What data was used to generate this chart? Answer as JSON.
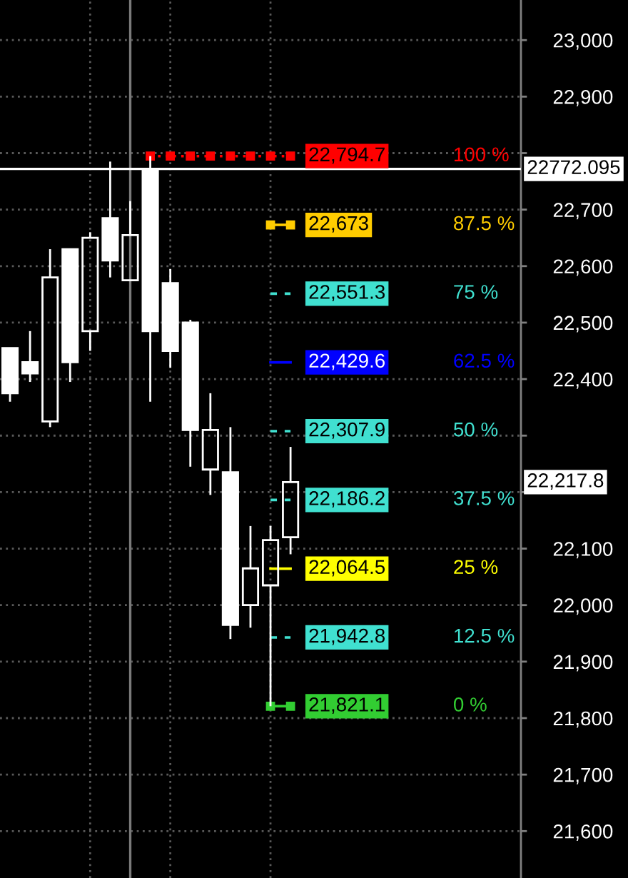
{
  "chart_data": {
    "type": "candlestick",
    "categories": [
      null,
      null,
      null,
      null,
      null,
      null,
      null,
      null,
      null,
      null,
      null,
      null,
      null,
      null,
      null,
      null,
      null,
      null,
      null,
      null,
      null,
      null,
      null,
      null,
      null,
      null
    ],
    "ohlc": [
      [
        22455,
        22455,
        22360,
        22375
      ],
      [
        22430,
        22485,
        22395,
        22410
      ],
      [
        22325,
        22630,
        22315,
        22580
      ],
      [
        22630,
        22630,
        22395,
        22430
      ],
      [
        22485,
        22660,
        22450,
        22650
      ],
      [
        22685,
        22785,
        22580,
        22610
      ],
      [
        22575,
        22715,
        22575,
        22655
      ],
      [
        22770,
        22794.7,
        22360,
        22485
      ],
      [
        22570,
        22595,
        22420,
        22450
      ],
      [
        22500,
        22505,
        22245,
        22310
      ],
      [
        22240,
        22375,
        22195,
        22310
      ],
      [
        22235,
        22315,
        21940,
        21965
      ],
      [
        22000,
        22140,
        21960,
        22065
      ],
      [
        22035,
        22140,
        21821.1,
        22115
      ],
      [
        22120,
        22280,
        22090,
        22217.8
      ],
      null,
      null,
      null,
      null,
      null,
      null,
      null,
      null,
      null,
      null,
      null
    ],
    "series": [
      {
        "name": "100 %",
        "type": "line",
        "color": "#ff0000",
        "line_style": "dotted",
        "marker": "square",
        "values": [
          null,
          null,
          null,
          null,
          null,
          null,
          null,
          22794.7,
          22794.7,
          22794.7,
          22794.7,
          22794.7,
          22794.7,
          22794.7,
          22794.7,
          null,
          null,
          null,
          null,
          null,
          null,
          null,
          null,
          null,
          null,
          null
        ],
        "value_labels": [
          null,
          null,
          null,
          null,
          null,
          null,
          null,
          null,
          null,
          null,
          null,
          null,
          null,
          null,
          "22,794.7",
          null,
          null,
          null,
          null,
          null,
          null,
          null,
          null,
          null,
          null,
          null
        ]
      },
      {
        "name": "87.5 %",
        "type": "line",
        "color": "#ffcc00",
        "line_style": "solid",
        "marker": "square",
        "values": [
          null,
          null,
          null,
          null,
          null,
          null,
          null,
          null,
          null,
          null,
          null,
          null,
          null,
          22673,
          22673,
          null,
          null,
          null,
          null,
          null,
          null,
          null,
          null,
          null,
          null,
          null
        ],
        "value_labels": [
          null,
          null,
          null,
          null,
          null,
          null,
          null,
          null,
          null,
          null,
          null,
          null,
          null,
          null,
          "22,673",
          null,
          null,
          null,
          null,
          null,
          null,
          null,
          null,
          null,
          null,
          null
        ]
      },
      {
        "name": "75 %",
        "type": "line",
        "color": "#40e0d0",
        "line_style": "dashed",
        "values": [
          null,
          null,
          null,
          null,
          null,
          null,
          null,
          null,
          null,
          null,
          null,
          null,
          null,
          22551.3,
          22551.3,
          null,
          null,
          null,
          null,
          null,
          null,
          null,
          null,
          null,
          null,
          null
        ],
        "value_labels": [
          null,
          null,
          null,
          null,
          null,
          null,
          null,
          null,
          null,
          null,
          null,
          null,
          null,
          null,
          "22,551.3",
          null,
          null,
          null,
          null,
          null,
          null,
          null,
          null,
          null,
          null,
          null
        ]
      },
      {
        "name": "62.5 %",
        "type": "line",
        "color": "#0000ff",
        "line_style": "solid",
        "values": [
          null,
          null,
          null,
          null,
          null,
          null,
          null,
          null,
          null,
          null,
          null,
          null,
          null,
          22429.6,
          22429.6,
          null,
          null,
          null,
          null,
          null,
          null,
          null,
          null,
          null,
          null,
          null
        ],
        "value_labels": [
          null,
          null,
          null,
          null,
          null,
          null,
          null,
          null,
          null,
          null,
          null,
          null,
          null,
          null,
          "22,429.6",
          null,
          null,
          null,
          null,
          null,
          null,
          null,
          null,
          null,
          null,
          null
        ]
      },
      {
        "name": "50 %",
        "type": "line",
        "color": "#40e0d0",
        "line_style": "dashed",
        "values": [
          null,
          null,
          null,
          null,
          null,
          null,
          null,
          null,
          null,
          null,
          null,
          null,
          null,
          22307.9,
          22307.9,
          null,
          null,
          null,
          null,
          null,
          null,
          null,
          null,
          null,
          null,
          null
        ],
        "value_labels": [
          null,
          null,
          null,
          null,
          null,
          null,
          null,
          null,
          null,
          null,
          null,
          null,
          null,
          null,
          "22,307.9",
          null,
          null,
          null,
          null,
          null,
          null,
          null,
          null,
          null,
          null,
          null
        ]
      },
      {
        "name": "37.5 %",
        "type": "line",
        "color": "#40e0d0",
        "line_style": "dashed",
        "values": [
          null,
          null,
          null,
          null,
          null,
          null,
          null,
          null,
          null,
          null,
          null,
          null,
          null,
          22186.2,
          22186.2,
          null,
          null,
          null,
          null,
          null,
          null,
          null,
          null,
          null,
          null,
          null
        ],
        "value_labels": [
          null,
          null,
          null,
          null,
          null,
          null,
          null,
          null,
          null,
          null,
          null,
          null,
          null,
          null,
          "22,186.2",
          null,
          null,
          null,
          null,
          null,
          null,
          null,
          null,
          null,
          null,
          null
        ]
      },
      {
        "name": "25 %",
        "type": "line",
        "color": "#ffff00",
        "line_style": "solid",
        "values": [
          null,
          null,
          null,
          null,
          null,
          null,
          null,
          null,
          null,
          null,
          null,
          null,
          null,
          22064.5,
          22064.5,
          null,
          null,
          null,
          null,
          null,
          null,
          null,
          null,
          null,
          null,
          null
        ],
        "value_labels": [
          null,
          null,
          null,
          null,
          null,
          null,
          null,
          null,
          null,
          null,
          null,
          null,
          null,
          null,
          "22,064.5",
          null,
          null,
          null,
          null,
          null,
          null,
          null,
          null,
          null,
          null,
          null
        ]
      },
      {
        "name": "12.5 %",
        "type": "line",
        "color": "#40e0d0",
        "line_style": "dashed",
        "values": [
          null,
          null,
          null,
          null,
          null,
          null,
          null,
          null,
          null,
          null,
          null,
          null,
          null,
          21942.8,
          21942.8,
          null,
          null,
          null,
          null,
          null,
          null,
          null,
          null,
          null,
          null,
          null
        ],
        "value_labels": [
          null,
          null,
          null,
          null,
          null,
          null,
          null,
          null,
          null,
          null,
          null,
          null,
          null,
          null,
          "21,942.8",
          null,
          null,
          null,
          null,
          null,
          null,
          null,
          null,
          null,
          null,
          null
        ]
      },
      {
        "name": "0 %",
        "type": "line",
        "color": "#32cd32",
        "line_style": "solid",
        "marker": "square",
        "values": [
          null,
          null,
          null,
          null,
          null,
          null,
          null,
          null,
          null,
          null,
          null,
          null,
          null,
          21821.1,
          21821.1,
          null,
          null,
          null,
          null,
          null,
          null,
          null,
          null,
          null,
          null,
          null
        ],
        "value_labels": [
          null,
          null,
          null,
          null,
          null,
          null,
          null,
          null,
          null,
          null,
          null,
          null,
          null,
          null,
          "21,821.1",
          null,
          null,
          null,
          null,
          null,
          null,
          null,
          null,
          null,
          null,
          null
        ]
      }
    ],
    "ref_lines": [
      {
        "axis": "y",
        "value": 22772.095,
        "label": "22772.095",
        "color": "#ffffff",
        "line_style": "solid"
      }
    ],
    "annotations": [
      "22,217.8"
    ],
    "ylim": [
      21517,
      23071
    ],
    "yticks": [
      {
        "value": 21600,
        "label": "21,600"
      },
      {
        "value": 21700,
        "label": "21,700"
      },
      {
        "value": 21800,
        "label": "21,800"
      },
      {
        "value": 21900,
        "label": "21,900"
      },
      {
        "value": 22000,
        "label": "22,000"
      },
      {
        "value": 22100,
        "label": "22,100"
      },
      {
        "value": 22200,
        "label": null
      },
      {
        "value": 22300,
        "label": null
      },
      {
        "value": 22400,
        "label": "22,400"
      },
      {
        "value": 22500,
        "label": "22,500"
      },
      {
        "value": 22600,
        "label": "22,600"
      },
      {
        "value": 22700,
        "label": "22,700"
      },
      {
        "value": 22800,
        "label": null
      },
      {
        "value": 22900,
        "label": "22,900"
      },
      {
        "value": 23000,
        "label": "23,000"
      }
    ],
    "grid": true,
    "tick_labels": "y"
  }
}
